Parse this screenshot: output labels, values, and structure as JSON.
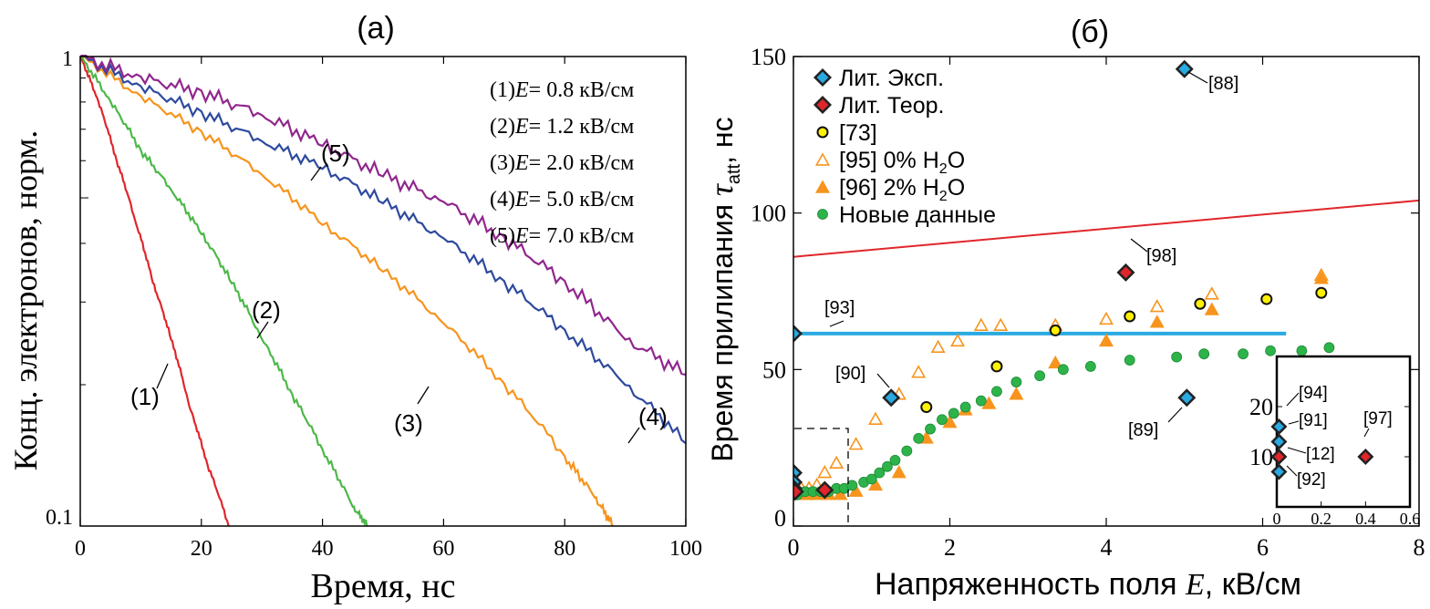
{
  "chart_data": [
    {
      "type": "line",
      "panel_label": "(a)",
      "xlabel": "Время, нс",
      "ylabel": "Конц. электронов, норм.",
      "xlim": [
        0,
        100
      ],
      "ylim": [
        0.1,
        1
      ],
      "yscale": "log",
      "x_ticks": [
        0,
        20,
        40,
        60,
        80,
        100
      ],
      "x_tick_labels": [
        "0",
        "20",
        "40",
        "60",
        "80",
        "100"
      ],
      "y_tick_labels": [
        "0.1",
        "1"
      ],
      "legend_location": "top-right",
      "legend": [
        {
          "n": "(1)",
          "e": "E",
          "text": "= 0.8 кВ/см"
        },
        {
          "n": "(2)",
          "e": "E",
          "text": "= 1.2 кВ/см"
        },
        {
          "n": "(3)",
          "e": "E",
          "text": "= 2.0 кВ/см"
        },
        {
          "n": "(4)",
          "e": "E",
          "text": "= 5.0 кВ/см"
        },
        {
          "n": "(5)",
          "e": "E",
          "text": "= 7.0 кВ/см"
        }
      ],
      "series": [
        {
          "label": "(1)",
          "color": "#e0262b",
          "x": [
            0,
            3,
            6,
            9,
            12,
            15,
            18,
            21,
            24.5
          ],
          "y": [
            1.0,
            0.8,
            0.6,
            0.45,
            0.33,
            0.25,
            0.18,
            0.135,
            0.1
          ]
        },
        {
          "label": "(2)",
          "color": "#4cb848",
          "x": [
            0,
            5,
            10,
            15,
            20,
            25,
            30,
            35,
            40,
            45,
            47.5
          ],
          "y": [
            1.0,
            0.8,
            0.63,
            0.52,
            0.42,
            0.33,
            0.25,
            0.19,
            0.145,
            0.11,
            0.1
          ]
        },
        {
          "label": "(3)",
          "color": "#f7941d",
          "x": [
            0,
            10,
            20,
            30,
            40,
            50,
            60,
            70,
            80,
            85,
            88
          ],
          "y": [
            1.0,
            0.82,
            0.69,
            0.56,
            0.44,
            0.35,
            0.27,
            0.2,
            0.14,
            0.115,
            0.1
          ]
        },
        {
          "label": "(4)",
          "color": "#2e4a9e",
          "x": [
            0,
            10,
            20,
            30,
            40,
            50,
            60,
            70,
            80,
            90,
            100
          ],
          "y": [
            1.0,
            0.86,
            0.76,
            0.66,
            0.58,
            0.49,
            0.41,
            0.33,
            0.26,
            0.2,
            0.15
          ]
        },
        {
          "label": "(5)",
          "color": "#90278e",
          "x": [
            0,
            10,
            20,
            30,
            40,
            50,
            60,
            70,
            80,
            90,
            100
          ],
          "y": [
            1.0,
            0.9,
            0.84,
            0.75,
            0.65,
            0.56,
            0.49,
            0.41,
            0.33,
            0.25,
            0.21
          ]
        }
      ],
      "curve_labels": [
        {
          "text": "(1)",
          "series": 0
        },
        {
          "text": "(2)",
          "series": 1
        },
        {
          "text": "(3)",
          "series": 2
        },
        {
          "text": "(4)",
          "series": 3
        },
        {
          "text": "(5)",
          "series": 4
        }
      ]
    },
    {
      "type": "scatter",
      "panel_label": "(б)",
      "xlabel": "Напряженность поля ",
      "xlabel_var": "E",
      "xlabel_unit": ", кВ/см",
      "ylabel": "Время прилипания ",
      "ylabel_var": "τ",
      "ylabel_sub": "att",
      "ylabel_unit": ", нс",
      "xlim": [
        0,
        8
      ],
      "ylim": [
        0,
        150
      ],
      "x_ticks": [
        0,
        2,
        4,
        6,
        8
      ],
      "x_tick_labels": [
        "0",
        "2",
        "4",
        "6",
        "8"
      ],
      "y_ticks": [
        0,
        50,
        100,
        150
      ],
      "y_tick_labels": [
        "0",
        "50",
        "100",
        "150"
      ],
      "legend_location": "top-left",
      "legend": [
        {
          "label": "Лит. Эксп.",
          "marker": "diamond",
          "color": "#29aae1"
        },
        {
          "label": "Лит. Теор.",
          "marker": "diamond",
          "color": "#e0262b"
        },
        {
          "label": "[73]",
          "marker": "circle",
          "color": "#fff200"
        },
        {
          "label": "[95] 0% H",
          "sub": "2",
          "after": "O",
          "marker": "triangle-open",
          "color": "#f7941d"
        },
        {
          "label": "[96] 2% H",
          "sub": "2",
          "after": "O",
          "marker": "triangle",
          "color": "#f7941d"
        },
        {
          "label": "Новые данные",
          "marker": "circle",
          "color": "#2db34a"
        }
      ],
      "theory_line": {
        "color": "#e0262b",
        "x": [
          0,
          8
        ],
        "y": [
          86,
          104
        ]
      },
      "ref_line_93": {
        "color": "#29aae1",
        "x": [
          0,
          6.3
        ],
        "y": [
          61.5,
          61.5
        ]
      },
      "exp_points": {
        "x": [
          0,
          0,
          0,
          0,
          1.25,
          5.0,
          5.03
        ],
        "y": [
          17,
          14,
          12,
          61.5,
          41,
          146,
          41
        ]
      },
      "theor_points": {
        "x": [
          0.02,
          0.4,
          4.25
        ],
        "y": [
          11,
          11.5,
          81
        ]
      },
      "points_73": {
        "x": [
          1.7,
          2.6,
          3.35,
          4.3,
          5.2,
          6.05,
          6.75
        ],
        "y": [
          38,
          51,
          62.5,
          67,
          71,
          72.5,
          74.5
        ]
      },
      "points_95": {
        "x": [
          0,
          0.05,
          0.1,
          0.2,
          0.3,
          0.4,
          0.55,
          0.8,
          1.05,
          1.35,
          1.6,
          1.85,
          2.1,
          2.4,
          2.65,
          3.35,
          4.0,
          4.65,
          5.35,
          6.75
        ],
        "y": [
          11,
          11,
          12,
          12,
          13,
          17,
          20,
          26,
          34,
          42,
          49,
          57,
          59,
          64,
          64,
          64,
          66,
          70,
          74,
          80
        ]
      },
      "points_96": {
        "x": [
          0,
          0.1,
          0.2,
          0.3,
          0.45,
          0.6,
          0.8,
          1.05,
          1.35,
          1.7,
          2.0,
          2.2,
          2.5,
          2.85,
          3.35,
          4.0,
          4.65,
          5.35,
          6.75
        ],
        "y": [
          10,
          10,
          10,
          10,
          10,
          10,
          11,
          13,
          17,
          28,
          33,
          37,
          39,
          42,
          52,
          59,
          65,
          69,
          79
        ]
      },
      "points_new": {
        "x": [
          0.05,
          0.15,
          0.25,
          0.35,
          0.45,
          0.55,
          0.65,
          0.75,
          0.9,
          1.0,
          1.1,
          1.2,
          1.3,
          1.45,
          1.6,
          1.75,
          1.9,
          2.05,
          2.2,
          2.4,
          2.6,
          2.85,
          3.15,
          3.45,
          3.8,
          4.3,
          4.9,
          5.25,
          5.75,
          6.1,
          6.5,
          6.85
        ],
        "y": [
          10,
          11,
          11,
          11,
          11,
          12,
          12,
          13,
          14,
          15,
          17,
          19,
          21,
          24,
          28,
          31,
          34,
          36,
          38,
          40,
          43,
          46,
          48,
          50,
          51,
          53,
          54,
          55,
          55,
          56,
          56,
          57
        ]
      },
      "annotations": [
        {
          "text": "[88]",
          "x": 5.0,
          "y": 146
        },
        {
          "text": "[98]",
          "x": 4.25,
          "y": 81
        },
        {
          "text": "[93]",
          "x": 0.45,
          "y": 61.5
        },
        {
          "text": "[90]",
          "x": 1.25,
          "y": 41
        },
        {
          "text": "[89]",
          "x": 5.03,
          "y": 41
        }
      ],
      "inset": {
        "xlim": [
          0,
          0.6
        ],
        "ylim": [
          0,
          30
        ],
        "x_ticks": [
          0,
          0.2,
          0.4,
          0.6
        ],
        "x_tick_labels": [
          "0",
          "0.2",
          "0.4",
          "0.6"
        ],
        "y_ticks": [
          10,
          20
        ],
        "y_tick_labels": [
          "10",
          "20"
        ],
        "exp_points": {
          "labels": [
            "[94]",
            "[91]",
            "[92]"
          ],
          "x": [
            0.01,
            0.01,
            0.01
          ],
          "y": [
            16,
            13,
            7
          ]
        },
        "theor_points": {
          "labels": [
            "[12]",
            "[97]"
          ],
          "x": [
            0.01,
            0.4
          ],
          "y": [
            10,
            10
          ]
        }
      }
    }
  ]
}
